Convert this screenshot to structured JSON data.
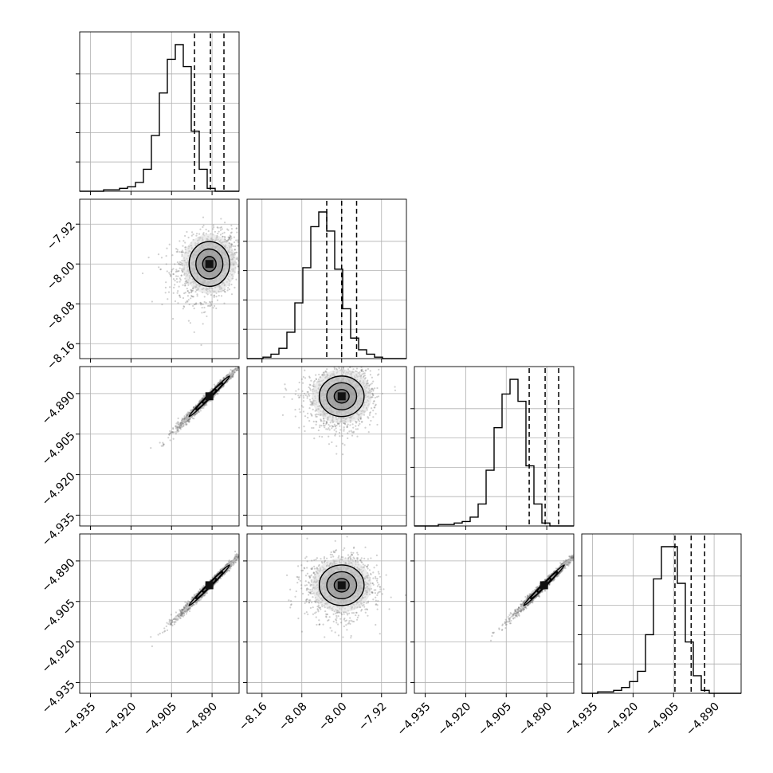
{
  "chart_data": {
    "type": "corner",
    "grid": true,
    "tick_labels": {
      "a": [
        "−4.935",
        "−4.920",
        "−4.905",
        "−4.890"
      ],
      "b": [
        "−8.16",
        "−8.08",
        "−8.00",
        "−7.92"
      ],
      "c": [
        "−4.935",
        "−4.920",
        "−4.905",
        "−4.890"
      ],
      "d": [
        "−4.935",
        "−4.920",
        "−4.905",
        "−4.890"
      ]
    },
    "params": [
      {
        "id": "a",
        "range": [
          -4.939,
          -4.88
        ],
        "ticks": [
          -4.935,
          -4.92,
          -4.905,
          -4.89
        ],
        "mean": -4.891,
        "sigma": 0.005,
        "quantiles": [
          -4.8965,
          -4.8906,
          -4.8856
        ]
      },
      {
        "id": "b",
        "range": [
          -8.19,
          -7.87
        ],
        "ticks": [
          -8.16,
          -8.08,
          -8.0,
          -7.92
        ],
        "mean": -8.0,
        "sigma": 0.03,
        "quantiles": [
          -8.03,
          -8.0,
          -7.97
        ]
      },
      {
        "id": "c",
        "range": [
          -4.939,
          -4.88
        ],
        "ticks": [
          -4.935,
          -4.92,
          -4.905,
          -4.89
        ],
        "mean": -4.891,
        "sigma": 0.005,
        "quantiles": [
          -4.8965,
          -4.8906,
          -4.8856
        ]
      },
      {
        "id": "d",
        "range": [
          -4.939,
          -4.88
        ],
        "ticks": [
          -4.935,
          -4.92,
          -4.905,
          -4.89
        ],
        "mean": -4.899,
        "sigma": 0.005,
        "quantiles": [
          -4.9045,
          -4.8985,
          -4.8935
        ]
      }
    ],
    "histograms": [
      {
        "param": "a",
        "edges_start": -4.939,
        "bin_width": 0.00295,
        "counts": [
          0,
          0,
          0,
          1,
          1,
          2,
          3,
          6,
          15,
          38,
          67,
          90,
          100,
          85,
          41,
          15,
          2,
          0,
          0,
          0
        ]
      },
      {
        "param": "b",
        "edges_start": -8.19,
        "bin_width": 0.016,
        "counts": [
          0,
          0,
          1,
          3,
          7,
          18,
          38,
          62,
          90,
          100,
          87,
          61,
          34,
          14,
          6,
          3,
          1,
          0,
          0,
          0
        ]
      },
      {
        "param": "c",
        "edges_start": -4.939,
        "bin_width": 0.00295,
        "counts": [
          0,
          0,
          0,
          1,
          1,
          2,
          3,
          6,
          15,
          38,
          67,
          90,
          100,
          85,
          41,
          15,
          2,
          0,
          0,
          0
        ]
      },
      {
        "param": "d",
        "edges_start": -4.939,
        "bin_width": 0.00295,
        "counts": [
          0,
          0,
          1,
          1,
          2,
          4,
          8,
          15,
          40,
          78,
          100,
          100,
          75,
          35,
          12,
          2,
          0,
          0,
          0,
          0
        ]
      }
    ],
    "panels_2d": [
      {
        "x": "a",
        "y": "b",
        "correlation": 0.2
      },
      {
        "x": "a",
        "y": "c",
        "correlation": 0.99
      },
      {
        "x": "b",
        "y": "c",
        "correlation": 0.1
      },
      {
        "x": "a",
        "y": "d",
        "correlation": 0.99
      },
      {
        "x": "b",
        "y": "d",
        "correlation": 0.05
      },
      {
        "x": "c",
        "y": "d",
        "correlation": 0.99
      }
    ],
    "contour_levels_sigma": [
      0.5,
      1.0,
      1.5,
      2.0
    ]
  }
}
